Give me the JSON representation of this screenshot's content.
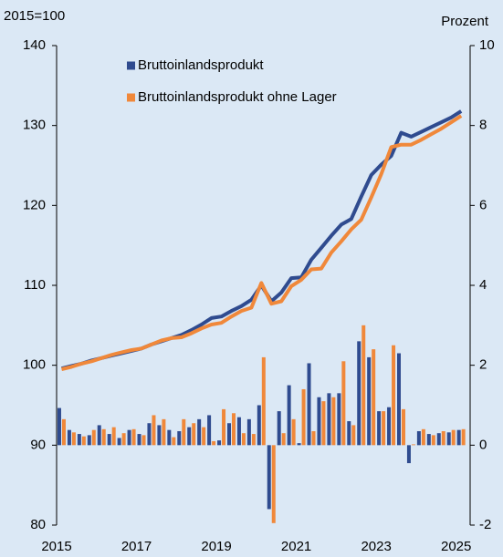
{
  "chart_data": {
    "type": "line_bar_dual",
    "y_label": "2015=100",
    "y2_label": "Prozent",
    "x": [
      2015.125,
      2015.375,
      2015.625,
      2015.875,
      2016.125,
      2016.375,
      2016.625,
      2016.875,
      2017.125,
      2017.375,
      2017.625,
      2017.875,
      2018.125,
      2018.375,
      2018.625,
      2018.875,
      2019.125,
      2019.375,
      2019.625,
      2019.875,
      2020.125,
      2020.375,
      2020.625,
      2020.875,
      2021.125,
      2021.375,
      2021.625,
      2021.875,
      2022.125,
      2022.375,
      2022.625,
      2022.875,
      2023.125,
      2023.375,
      2023.625,
      2023.875,
      2024.125,
      2024.375,
      2024.625,
      2024.875,
      2025.125
    ],
    "xlim": [
      2015,
      2025.35
    ],
    "xticks": [
      2015,
      2017,
      2019,
      2021,
      2023,
      2025
    ],
    "ylim": [
      80,
      140
    ],
    "yticks": [
      80,
      90,
      100,
      110,
      120,
      130,
      140
    ],
    "y2lim": [
      -2,
      10
    ],
    "y2ticks": [
      -2,
      0,
      2,
      4,
      6,
      8,
      10
    ],
    "series": [
      {
        "name": "Bruttoinlandsprodukt",
        "color": "#2f4b8f",
        "kind": "line",
        "values": [
          99.6,
          99.9,
          100.2,
          100.6,
          100.9,
          101.2,
          101.5,
          101.8,
          102.1,
          102.6,
          103.0,
          103.4,
          103.8,
          104.4,
          105.1,
          105.9,
          106.1,
          106.8,
          107.4,
          108.2,
          110.0,
          108.0,
          109.1,
          110.9,
          111.0,
          113.2,
          114.7,
          116.2,
          117.6,
          118.3,
          121.1,
          123.8,
          125.1,
          126.2,
          129.1,
          128.6,
          129.2,
          129.8,
          130.4,
          131.0,
          131.8
        ]
      },
      {
        "name": "Bruttoinlandsprodukt ohne Lager",
        "color": "#f0883a",
        "kind": "line",
        "values": [
          99.5,
          99.8,
          100.2,
          100.5,
          100.9,
          101.3,
          101.6,
          101.9,
          102.1,
          102.6,
          103.1,
          103.4,
          103.5,
          104.0,
          104.6,
          105.1,
          105.3,
          106.1,
          106.8,
          107.2,
          110.3,
          107.7,
          108.0,
          109.9,
          110.7,
          112.0,
          112.1,
          114.1,
          115.5,
          117.0,
          118.2,
          121.0,
          123.9,
          127.3,
          127.6,
          127.6,
          128.2,
          128.9,
          129.6,
          130.4,
          131.2
        ]
      },
      {
        "color": "#2f4b8f",
        "kind": "bar",
        "axis": "y2",
        "values": [
          0.93,
          0.38,
          0.28,
          0.25,
          0.5,
          0.28,
          0.18,
          0.38,
          0.28,
          0.55,
          0.5,
          0.38,
          0.35,
          0.45,
          0.65,
          0.75,
          0.12,
          0.55,
          0.7,
          0.65,
          1.0,
          -1.6,
          0.85,
          1.5,
          0.05,
          2.05,
          1.2,
          1.3,
          1.3,
          0.6,
          2.6,
          2.2,
          0.85,
          0.95,
          2.3,
          -0.45,
          0.35,
          0.28,
          0.3,
          0.32,
          0.38
        ]
      },
      {
        "color": "#f0883a",
        "kind": "bar",
        "axis": "y2",
        "values": [
          0.65,
          0.32,
          0.22,
          0.38,
          0.4,
          0.45,
          0.3,
          0.4,
          0.25,
          0.75,
          0.65,
          0.2,
          0.65,
          0.55,
          0.45,
          0.1,
          0.9,
          0.8,
          0.3,
          0.28,
          2.2,
          -1.95,
          0.3,
          0.65,
          1.4,
          0.35,
          1.1,
          1.2,
          2.1,
          0.5,
          3.0,
          2.4,
          0.85,
          2.5,
          0.9,
          0.02,
          0.4,
          0.25,
          0.35,
          0.38,
          0.4
        ]
      }
    ]
  }
}
